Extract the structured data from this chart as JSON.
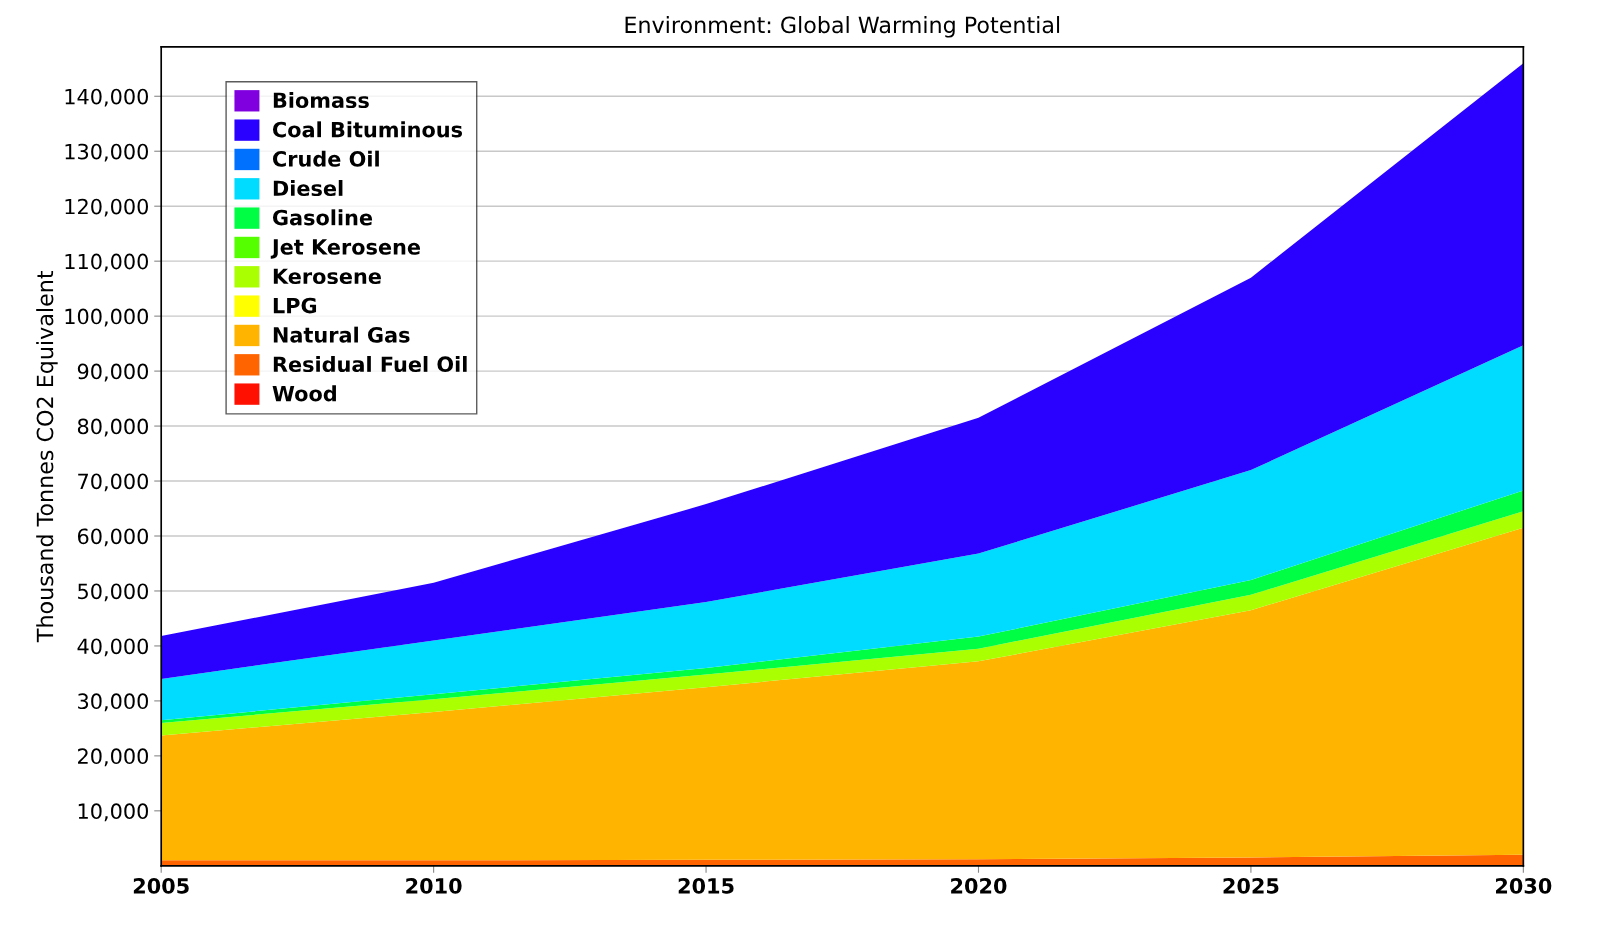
{
  "chart_data": {
    "type": "area",
    "stacked": true,
    "title": "Environment: Global Warming Potential",
    "ylabel": "Thousand Tonnes CO2 Equivalent",
    "x": [
      2005,
      2010,
      2015,
      2020,
      2025,
      2030
    ],
    "series": [
      {
        "name": "Wood",
        "color": "#ff1000",
        "values": [
          null,
          null,
          null,
          null,
          null,
          null
        ]
      },
      {
        "name": "Residual Fuel Oil",
        "color": "#ff6400",
        "values": [
          1000,
          1000,
          1100,
          1200,
          1500,
          2000
        ]
      },
      {
        "name": "Natural Gas",
        "color": "#ffb400",
        "values": [
          22700,
          27000,
          31400,
          36000,
          45000,
          59500
        ]
      },
      {
        "name": "LPG",
        "color": "#ffff00",
        "values": [
          null,
          null,
          null,
          null,
          null,
          null
        ]
      },
      {
        "name": "Kerosene",
        "color": "#aaff00",
        "values": [
          2300,
          2300,
          2300,
          2300,
          2800,
          3000
        ]
      },
      {
        "name": "Jet Kerosene",
        "color": "#55ff00",
        "values": [
          null,
          null,
          null,
          null,
          null,
          null
        ]
      },
      {
        "name": "Gasoline",
        "color": "#00ff44",
        "values": [
          500,
          900,
          1200,
          2200,
          2700,
          3800
        ]
      },
      {
        "name": "Diesel",
        "color": "#00dcff",
        "values": [
          7500,
          9800,
          12000,
          15100,
          20000,
          26400
        ]
      },
      {
        "name": "Crude Oil",
        "color": "#0070ff",
        "values": [
          null,
          null,
          null,
          null,
          null,
          null
        ]
      },
      {
        "name": "Coal Bituminous",
        "color": "#2a00ff",
        "values": [
          7800,
          10500,
          17800,
          24700,
          35000,
          51300
        ]
      },
      {
        "name": "Biomass",
        "color": "#8000e0",
        "values": [
          null,
          null,
          null,
          null,
          null,
          null
        ]
      }
    ],
    "xlim": [
      2005,
      2030
    ],
    "xticks": [
      2005,
      2010,
      2015,
      2020,
      2025,
      2030
    ],
    "ylim": [
      0,
      149000
    ],
    "yticks": [
      {
        "value": 10000,
        "label": "10,000"
      },
      {
        "value": 20000,
        "label": "20,000"
      },
      {
        "value": 30000,
        "label": "30,000"
      },
      {
        "value": 40000,
        "label": "40,000"
      },
      {
        "value": 50000,
        "label": "50,000"
      },
      {
        "value": 60000,
        "label": "60,000"
      },
      {
        "value": 70000,
        "label": "70,000"
      },
      {
        "value": 80000,
        "label": "80,000"
      },
      {
        "value": 90000,
        "label": "90,000"
      },
      {
        "value": 100000,
        "label": "100,000"
      },
      {
        "value": 110000,
        "label": "110,000"
      },
      {
        "value": 120000,
        "label": "120,000"
      },
      {
        "value": 130000,
        "label": "130,000"
      },
      {
        "value": 140000,
        "label": "140,000"
      }
    ],
    "grid": "y",
    "legend": "top left"
  }
}
